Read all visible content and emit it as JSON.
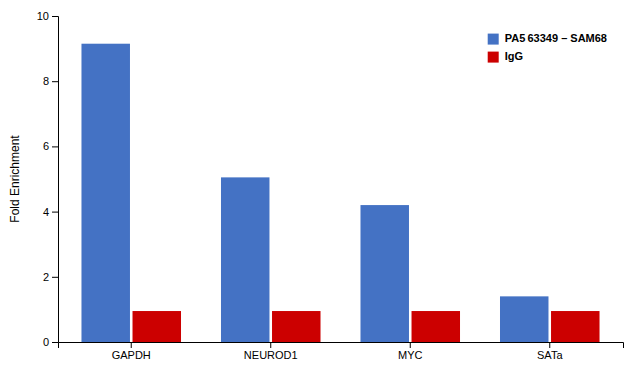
{
  "chart_data": {
    "type": "bar",
    "categories": [
      "GAPDH",
      "NEUROD1",
      "MYC",
      "SATa"
    ],
    "series": [
      {
        "name": "PA5 63349 – SAM68",
        "color": "#4472C4",
        "values": [
          9.15,
          5.05,
          4.2,
          1.4
        ]
      },
      {
        "name": "IgG",
        "color": "#CC0000",
        "values": [
          0.95,
          0.95,
          0.95,
          0.95
        ]
      }
    ],
    "ylabel": "Fold Enrichment",
    "ylim": [
      0,
      10
    ],
    "yticks": [
      0,
      2,
      4,
      6,
      8,
      10
    ],
    "grid": false,
    "legend": "upper right"
  }
}
